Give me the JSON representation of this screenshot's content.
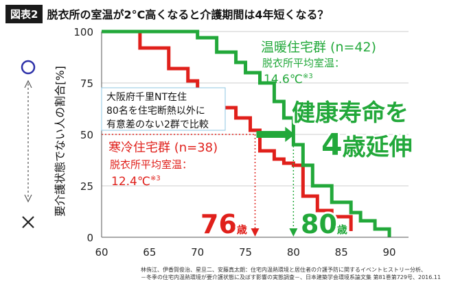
{
  "header": {
    "tag": "図表2",
    "title": "脱衣所の室温が2°C高くなると介護期間は4年短くなる？"
  },
  "colors": {
    "warm": "#22a83a",
    "cold": "#e0201b",
    "note_box_border": "#8ec5e0"
  },
  "legend_marks": {
    "circle": "○",
    "cross": "×"
  },
  "annotations": {
    "note_lines": [
      "大阪府千里NT在住",
      "80名を住宅断熱以外に",
      "有意差のない2群で比較"
    ],
    "warm_group": "温暖住宅群 (n=42)",
    "warm_room_label": "脱衣所平均室温：",
    "warm_temp": "14.6℃",
    "warm_temp_sup": "※3",
    "cold_group": "寒冷住宅群 (n=38)",
    "cold_room_label": "脱衣所平均室温：",
    "cold_temp": "12.4℃",
    "cold_temp_sup": "※3",
    "headline_1": "健康寿命を",
    "headline_num": "4",
    "headline_2": "歳延伸",
    "age_cold": "76",
    "age_warm": "80",
    "age_unit": "歳"
  },
  "citation": {
    "line1": "林侑江、伊香賀俊治、星旦二、安藤真太朗：住宅内温熱環境と居住者の介護予防に関するイベントヒストリー分析、",
    "line2": "－冬季の住宅内温熱環境が要介護状態に及ぼす影響の実態調査－、日本建築学会環境系論文集 第81巻第729号、2016.11"
  },
  "chart_data": {
    "type": "line",
    "ylabel": "要介護状態でない人の割合[%]",
    "xlabel": "",
    "xlim": [
      60,
      92
    ],
    "ylim": [
      0,
      100
    ],
    "xticks": [
      60,
      65,
      70,
      75,
      80,
      85,
      90
    ],
    "yticks": [
      0,
      25,
      50,
      75,
      100
    ],
    "series": [
      {
        "name": "寒冷住宅群 (n=38)",
        "color": "#e0201b",
        "step": true,
        "x": [
          60,
          64,
          64,
          67,
          67,
          69,
          69,
          70,
          70,
          71,
          71,
          72.5,
          72.5,
          74,
          74,
          75.5,
          75.5,
          76.5,
          76.5,
          78,
          78,
          79,
          79,
          80,
          80,
          81,
          81,
          82.5,
          82.5,
          84,
          84,
          86,
          86
        ],
        "y": [
          100,
          100,
          92,
          92,
          82,
          82,
          76,
          76,
          72,
          72,
          67,
          67,
          63,
          63,
          58,
          58,
          52,
          52,
          42,
          42,
          38,
          38,
          36,
          36,
          35,
          35,
          20,
          20,
          13,
          13,
          10,
          10,
          3
        ]
      },
      {
        "name": "温暖住宅群 (n=42)",
        "color": "#22a83a",
        "step": true,
        "x": [
          60,
          70,
          70,
          72,
          72,
          74,
          74,
          75,
          75,
          76.5,
          76.5,
          78,
          78,
          79,
          79,
          80,
          80,
          81,
          81,
          82,
          82,
          84,
          84,
          86,
          86,
          87,
          87,
          88.5,
          88.5,
          90,
          90
        ],
        "y": [
          100,
          100,
          97,
          97,
          90,
          90,
          85,
          85,
          80,
          80,
          75,
          75,
          66,
          66,
          58,
          58,
          45,
          45,
          35,
          35,
          25,
          25,
          17,
          17,
          12,
          12,
          8,
          8,
          4,
          4,
          0
        ]
      }
    ],
    "reference_lines": [
      {
        "x": 76,
        "y": 50
      },
      {
        "x": 80,
        "y": 50
      }
    ]
  }
}
